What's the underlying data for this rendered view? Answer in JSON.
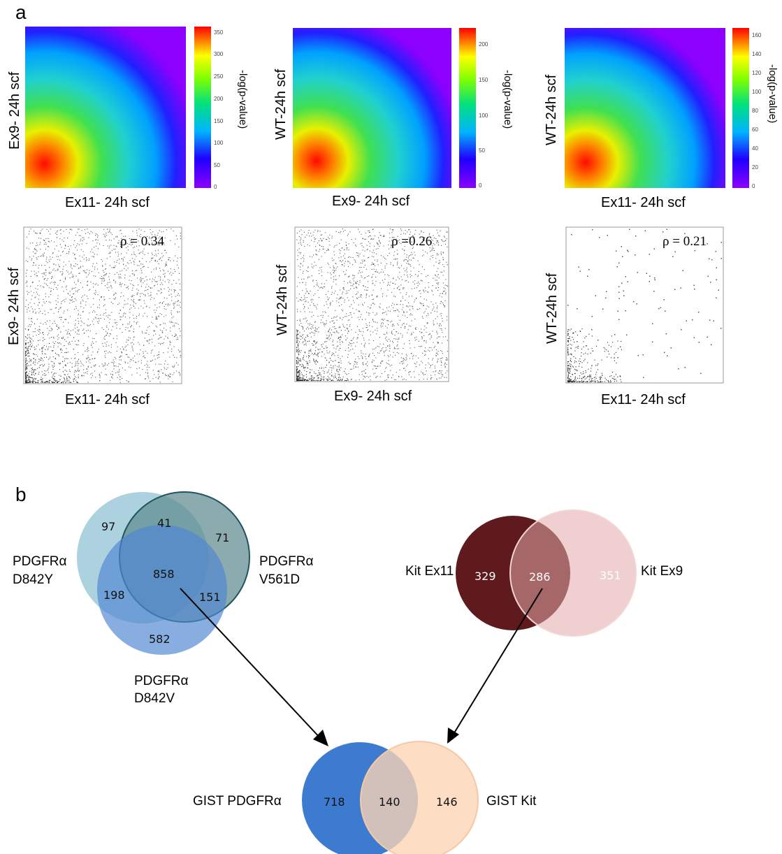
{
  "panel_a": {
    "letter": "a",
    "heatmaps": [
      {
        "ylabel": "Ex9- 24h scf",
        "xlabel": "Ex11- 24h scf",
        "cbar_label": "-log(p-value)",
        "cbar_ticks": [
          "350",
          "300",
          "250",
          "200",
          "150",
          "100",
          "50",
          "0"
        ]
      },
      {
        "ylabel": "WT-24h scf",
        "xlabel": "Ex9- 24h scf",
        "cbar_label": "-log(p-value)",
        "cbar_ticks": [
          "200",
          "150",
          "100",
          "50",
          "0"
        ]
      },
      {
        "ylabel": "WT-24h scf",
        "xlabel": "Ex11- 24h scf",
        "cbar_label": "-log(p-value)",
        "cbar_ticks": [
          "160",
          "140",
          "120",
          "100",
          "80",
          "60",
          "40",
          "20",
          "0"
        ]
      }
    ],
    "scatters": [
      {
        "ylabel": "Ex9- 24h scf",
        "xlabel": "Ex11- 24h scf",
        "rho": "ρ = 0.34"
      },
      {
        "ylabel": "WT-24h scf",
        "xlabel": "Ex9- 24h scf",
        "rho": "ρ =0.26"
      },
      {
        "ylabel": "WT-24h scf",
        "xlabel": "Ex11- 24h scf",
        "rho": "ρ = 0.21"
      }
    ]
  },
  "panel_b": {
    "letter": "b",
    "venn_pdgfra": {
      "labels": {
        "d842y_1": "PDGFRα",
        "d842y_2": "D842Y",
        "v561d_1": "PDGFRα",
        "v561d_2": "V561D",
        "d842v_1": "PDGFRα",
        "d842v_2": "D842V"
      },
      "counts": {
        "y_only": "97",
        "y_v": "41",
        "v_only": "71",
        "all": "858",
        "y_dv": "198",
        "v_dv": "151",
        "dv_only": "582"
      },
      "colors": {
        "d842y": "#9fcad9",
        "v561d": "#5e8a8f",
        "d842v": "#5a8fd6"
      }
    },
    "venn_kit": {
      "labels": {
        "ex11": "Kit Ex11",
        "ex9": "Kit Ex9"
      },
      "counts": {
        "ex11_only": "329",
        "both": "286",
        "ex9_only": "351"
      },
      "colors": {
        "ex11": "#5e1a1d",
        "ex9": "#e2a8a8"
      }
    },
    "venn_gist": {
      "labels": {
        "pdgfra": "GIST PDGFRα",
        "kit": "GIST Kit"
      },
      "counts": {
        "pdgfra_only": "718",
        "both": "140",
        "kit_only": "146"
      },
      "colors": {
        "pdgfra": "#3d7bd0",
        "kit": "#fcd4b4"
      }
    }
  }
}
